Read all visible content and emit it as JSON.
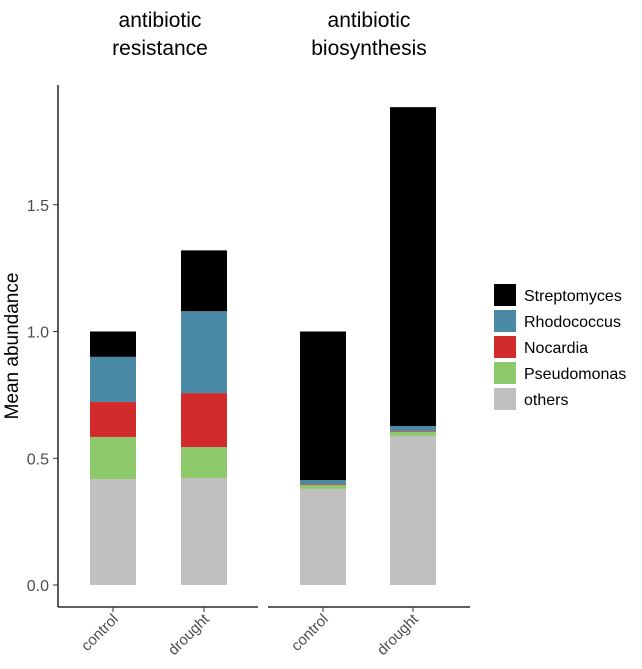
{
  "chart_data": {
    "type": "bar",
    "stacked": true,
    "ylabel": "Mean abundance",
    "xlabel": "",
    "ylim": [
      0,
      1.95
    ],
    "yticks": [
      "0.0",
      "0.5",
      "1.0",
      "1.5"
    ],
    "grid": false,
    "legend_position": "right",
    "panels": [
      {
        "title": [
          "antibiotic",
          "resistance"
        ],
        "categories": [
          "control",
          "drought"
        ]
      },
      {
        "title": [
          "antibiotic",
          "biosynthesis"
        ],
        "categories": [
          "control",
          "drought"
        ]
      }
    ],
    "series": [
      {
        "name": "others",
        "color": "#c0c0c0",
        "values": [
          [
            0.418,
            0.422
          ],
          [
            0.379,
            0.588
          ]
        ]
      },
      {
        "name": "Pseudomonas",
        "color": "#8dc96b",
        "values": [
          [
            0.166,
            0.122
          ],
          [
            0.015,
            0.016
          ]
        ]
      },
      {
        "name": "Nocardia",
        "color": "#d12b2b",
        "values": [
          [
            0.138,
            0.213
          ],
          [
            0.003,
            0.003
          ]
        ]
      },
      {
        "name": "Rhodococcus",
        "color": "#4a8aa6",
        "values": [
          [
            0.178,
            0.323
          ],
          [
            0.017,
            0.02
          ]
        ]
      },
      {
        "name": "Streptomyces",
        "color": "#000000",
        "values": [
          [
            0.1,
            0.24
          ],
          [
            0.586,
            1.258
          ]
        ]
      }
    ],
    "legend_order": [
      "Streptomyces",
      "Rhodococcus",
      "Nocardia",
      "Pseudomonas",
      "others"
    ]
  }
}
